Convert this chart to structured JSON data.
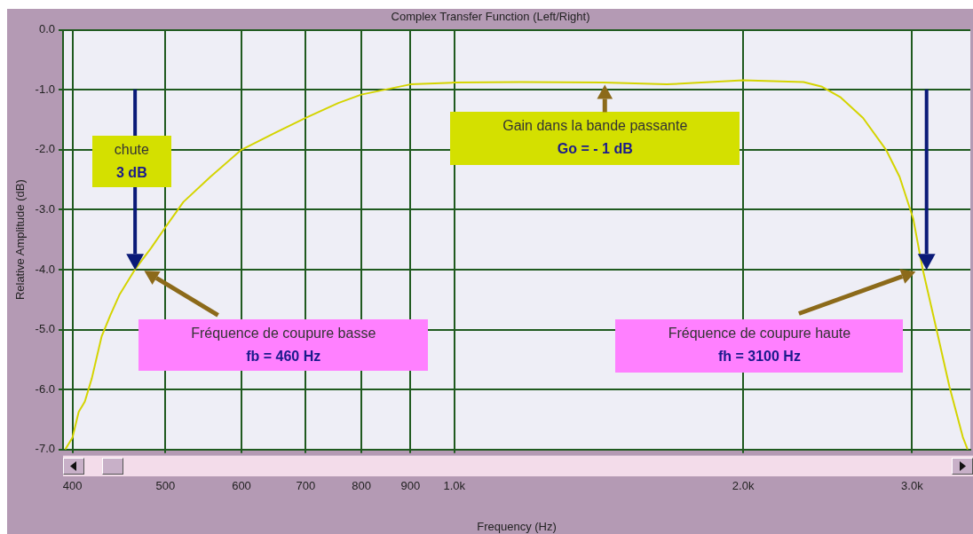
{
  "chart_data": {
    "type": "line",
    "title": "Complex Transfer Function (Left/Right)",
    "xlabel": "Frequency (Hz)",
    "ylabel": "Relative Amplitude (dB)",
    "x": [
      393,
      400,
      406,
      412,
      419,
      429,
      438,
      448,
      465,
      483,
      500,
      522,
      557,
      600,
      650,
      700,
      757,
      800,
      900,
      1000,
      1173,
      1429,
      1665,
      2000,
      2312,
      2417,
      2524,
      2667,
      2818,
      2911,
      3008,
      3077,
      3178,
      3281,
      3388,
      3428
    ],
    "series": [
      {
        "color": "#d4d400",
        "values": [
          -7.0,
          -6.8,
          -6.37,
          -6.2,
          -5.81,
          -5.11,
          -4.76,
          -4.41,
          -3.99,
          -3.64,
          -3.29,
          -2.87,
          -2.45,
          -2.0,
          -1.72,
          -1.47,
          -1.22,
          -1.08,
          -0.91,
          -0.88,
          -0.87,
          -0.88,
          -0.91,
          -0.84,
          -0.87,
          -0.95,
          -1.12,
          -1.47,
          -2.0,
          -2.45,
          -3.15,
          -3.99,
          -4.97,
          -5.95,
          -6.79,
          -7.0
        ]
      }
    ],
    "xlim": [
      391,
      3450
    ],
    "ylim": [
      -7,
      0
    ],
    "xticks": [
      400,
      500,
      600,
      700,
      800,
      900,
      {
        "value": 1000,
        "label": "1.0k"
      },
      {
        "value": 2000,
        "label": "2.0k"
      },
      {
        "value": 3000,
        "label": "3.0k"
      }
    ],
    "yticks": [
      {
        "value": 0,
        "label": "0.0"
      },
      {
        "value": -1,
        "label": "-1.0"
      },
      {
        "value": -2,
        "label": "-2.0"
      },
      {
        "value": -3,
        "label": "-3.0"
      },
      {
        "value": -4,
        "label": "-4.0"
      },
      {
        "value": -5,
        "label": "-5.0"
      },
      {
        "value": -6,
        "label": "-6.0"
      },
      {
        "value": -7,
        "label": "-7.0"
      }
    ],
    "log": "x",
    "grid": true,
    "annotations": [
      "chute\n3 dB",
      {
        "text": "Gain dans la bande passante\nGo = - 1 dB",
        "x": 1435,
        "y": -0.9
      },
      "Fréquence de coupure basse\nfb = 460 Hz",
      "Fréquence de coupure haute\nfh = 3100 Hz"
    ]
  }
}
